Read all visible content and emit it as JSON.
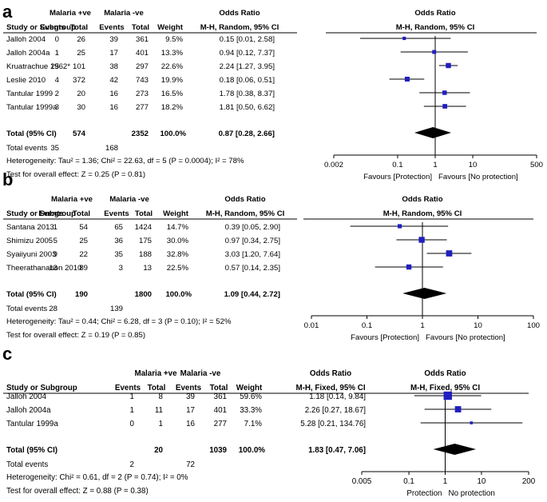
{
  "chart_data": [
    {
      "type": "forest",
      "panel_letter": "a",
      "group1_label": "Malaria +ve",
      "group2_label": "Malaria -ve",
      "headers": {
        "study": "Study or Subgroup",
        "events": "Events",
        "total": "Total",
        "weight": "Weight",
        "or_title": "Odds Ratio",
        "or_method": "M-H, Random, 95% CI"
      },
      "plot_title": "Odds Ratio",
      "plot_method": "M-H, Random, 95% CI",
      "studies": [
        {
          "name": "Jalloh 2004",
          "e1": "0",
          "t1": "26",
          "e2": "39",
          "t2": "361",
          "weight": "9.5%",
          "ci_text": "0.15 [0.01, 2.58]",
          "or": 0.15,
          "lo": 0.01,
          "hi": 2.58
        },
        {
          "name": "Jalloh 2004a",
          "e1": "1",
          "t1": "25",
          "e2": "17",
          "t2": "401",
          "weight": "13.3%",
          "ci_text": "0.94 [0.12, 7.37]",
          "or": 0.94,
          "lo": 0.12,
          "hi": 7.37
        },
        {
          "name": "Kruatrachue 1962*",
          "e1": "25",
          "t1": "101",
          "e2": "38",
          "t2": "297",
          "weight": "22.6%",
          "ci_text": "2.24 [1.27, 3.95]",
          "or": 2.24,
          "lo": 1.27,
          "hi": 3.95
        },
        {
          "name": "Leslie 2010",
          "e1": "4",
          "t1": "372",
          "e2": "42",
          "t2": "743",
          "weight": "19.9%",
          "ci_text": "0.18 [0.06, 0.51]",
          "or": 0.18,
          "lo": 0.06,
          "hi": 0.51
        },
        {
          "name": "Tantular 1999",
          "e1": "2",
          "t1": "20",
          "e2": "16",
          "t2": "273",
          "weight": "16.5%",
          "ci_text": "1.78 [0.38, 8.37]",
          "or": 1.78,
          "lo": 0.38,
          "hi": 8.37
        },
        {
          "name": "Tantular 1999a",
          "e1": "3",
          "t1": "30",
          "e2": "16",
          "t2": "277",
          "weight": "18.2%",
          "ci_text": "1.81 [0.50, 6.62]",
          "or": 1.81,
          "lo": 0.5,
          "hi": 6.62
        }
      ],
      "total": {
        "label": "Total (95% CI)",
        "t1": "574",
        "t2": "2352",
        "weight": "100.0%",
        "ci_text": "0.87 [0.28, 2.66]",
        "or": 0.87,
        "lo": 0.28,
        "hi": 2.66
      },
      "total_events": {
        "label": "Total events",
        "e1": "35",
        "e2": "168"
      },
      "heterogeneity": "Heterogeneity: Tau² = 1.36; Chi² = 22.63, df = 5 (P = 0.0004); I² = 78%",
      "overall_effect": "Test for overall effect: Z = 0.25 (P = 0.81)",
      "axis": {
        "scale": "log",
        "min": 0.002,
        "max": 500,
        "ticks": [
          0.002,
          0.1,
          1,
          10,
          500
        ],
        "tick_labels": [
          "0.002",
          "0.1",
          "1",
          "10",
          "500"
        ]
      },
      "favours_left": "Favours [Protection]",
      "favours_right": "Favours [No protection]"
    },
    {
      "type": "forest",
      "panel_letter": "b",
      "group1_label": "Malaria +ve",
      "group2_label": "Malaria -ve",
      "headers": {
        "study": "Study or Subgroup",
        "events": "Events",
        "total": "Total",
        "weight": "Weight",
        "or_title": "Odds Ratio",
        "or_method": "M-H, Random, 95% CI"
      },
      "plot_title": "Odds Ratio",
      "plot_method": "M-H, Random, 95% CI",
      "studies": [
        {
          "name": "Santana 2013",
          "e1": "1",
          "t1": "54",
          "e2": "65",
          "t2": "1424",
          "weight": "14.7%",
          "ci_text": "0.39 [0.05, 2.90]",
          "or": 0.39,
          "lo": 0.05,
          "hi": 2.9
        },
        {
          "name": "Shimizu 2005",
          "e1": "5",
          "t1": "25",
          "e2": "36",
          "t2": "175",
          "weight": "30.0%",
          "ci_text": "0.97 [0.34, 2.75]",
          "or": 0.97,
          "lo": 0.34,
          "hi": 2.75
        },
        {
          "name": "Syaiiyuni 2003",
          "e1": "9",
          "t1": "22",
          "e2": "35",
          "t2": "188",
          "weight": "32.8%",
          "ci_text": "3.03 [1.20, 7.64]",
          "or": 3.03,
          "lo": 1.2,
          "hi": 7.64
        },
        {
          "name": "Theerathananon 2010",
          "e1": "13",
          "t1": "89",
          "e2": "3",
          "t2": "13",
          "weight": "22.5%",
          "ci_text": "0.57 [0.14, 2.35]",
          "or": 0.57,
          "lo": 0.14,
          "hi": 2.35
        }
      ],
      "total": {
        "label": "Total (95% CI)",
        "t1": "190",
        "t2": "1800",
        "weight": "100.0%",
        "ci_text": "1.09 [0.44, 2.72]",
        "or": 1.09,
        "lo": 0.44,
        "hi": 2.72
      },
      "total_events": {
        "label": "Total events",
        "e1": "28",
        "e2": "139"
      },
      "heterogeneity": "Heterogeneity: Tau² = 0.44; Chi² = 6.28, df = 3 (P = 0.10); I² = 52%",
      "overall_effect": "Test for overall effect: Z = 0.19 (P = 0.85)",
      "axis": {
        "scale": "log",
        "min": 0.01,
        "max": 100,
        "ticks": [
          0.01,
          0.1,
          1,
          10,
          100
        ],
        "tick_labels": [
          "0.01",
          "0.1",
          "1",
          "10",
          "100"
        ]
      },
      "favours_left": "Favours [Protection]",
      "favours_right": "Favours [No protection]"
    },
    {
      "type": "forest",
      "panel_letter": "c",
      "group1_label": "Malaria +ve",
      "group2_label": "Malaria -ve",
      "headers": {
        "study": "Study or Subgroup",
        "events": "Events",
        "total": "Total",
        "weight": "Weight",
        "or_title": "Odds Ratio",
        "or_method": "M-H, Fixed, 95% CI"
      },
      "plot_title": "Odds Ratio",
      "plot_method": "M-H, Fixed, 95% CI",
      "studies": [
        {
          "name": "Jalloh 2004",
          "e1": "1",
          "t1": "8",
          "e2": "39",
          "t2": "361",
          "weight": "59.6%",
          "ci_text": "1.18 [0.14, 9.84]",
          "or": 1.18,
          "lo": 0.14,
          "hi": 9.84
        },
        {
          "name": "Jalloh 2004a",
          "e1": "1",
          "t1": "11",
          "e2": "17",
          "t2": "401",
          "weight": "33.3%",
          "ci_text": "2.26 [0.27, 18.67]",
          "or": 2.26,
          "lo": 0.27,
          "hi": 18.67
        },
        {
          "name": "Tantular 1999a",
          "e1": "0",
          "t1": "1",
          "e2": "16",
          "t2": "277",
          "weight": "7.1%",
          "ci_text": "5.28 [0.21, 134.76]",
          "or": 5.28,
          "lo": 0.21,
          "hi": 134.76
        }
      ],
      "total": {
        "label": "Total (95% CI)",
        "t1": "20",
        "t2": "1039",
        "weight": "100.0%",
        "ci_text": "1.83 [0.47, 7.06]",
        "or": 1.83,
        "lo": 0.47,
        "hi": 7.06
      },
      "total_events": {
        "label": "Total events",
        "e1": "2",
        "e2": "72"
      },
      "heterogeneity": "Heterogeneity: Chi² = 0.61, df = 2 (P = 0.74); I² = 0%",
      "overall_effect": "Test for overall effect: Z = 0.88 (P = 0.38)",
      "axis": {
        "scale": "log",
        "min": 0.005,
        "max": 200,
        "ticks": [
          0.005,
          0.1,
          1,
          10,
          200
        ],
        "tick_labels": [
          "0.005",
          "0.1",
          "1",
          "10",
          "200"
        ]
      },
      "favours_left": "Protection",
      "favours_right": "No protection"
    }
  ],
  "colors": {
    "ink": "#000000",
    "marker": "#1f1fbf",
    "rule": "#000000"
  }
}
